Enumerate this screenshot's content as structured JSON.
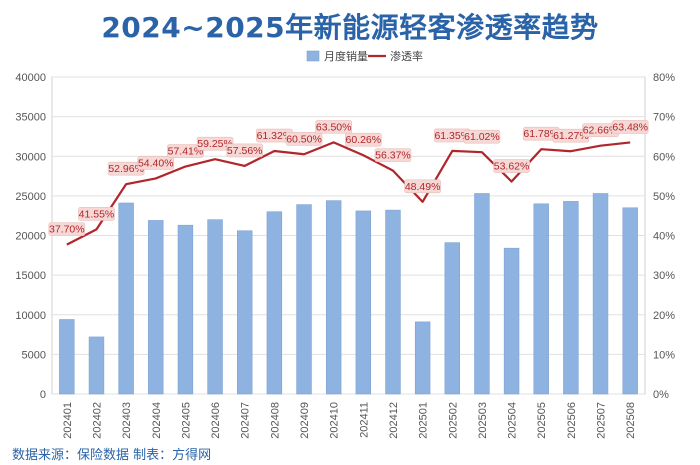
{
  "title": "2024~2025年新能源轻客渗透率趋势",
  "source": "数据来源：保险数据 制表：方得网",
  "chart_data": {
    "type": "bar",
    "title": "2024~2025年新能源轻客渗透率趋势",
    "categories": [
      "202401",
      "202402",
      "202403",
      "202404",
      "202405",
      "202406",
      "202407",
      "202408",
      "202409",
      "202410",
      "202411",
      "202412",
      "202501",
      "202502",
      "202503",
      "202504",
      "202505",
      "202506",
      "202507",
      "202508"
    ],
    "series": [
      {
        "name": "月度销量",
        "type": "bar",
        "axis": "left",
        "color": "#8fb3e0",
        "values": [
          9400,
          7200,
          24100,
          21900,
          21300,
          22000,
          20600,
          23000,
          23900,
          24400,
          23100,
          23200,
          9100,
          19100,
          25300,
          18400,
          24000,
          24300,
          25300,
          23500
        ]
      },
      {
        "name": "渗透率",
        "type": "line",
        "axis": "right",
        "color": "#b0262a",
        "values": [
          37.7,
          41.55,
          52.96,
          54.4,
          57.41,
          59.25,
          57.56,
          61.32,
          60.5,
          63.5,
          60.26,
          56.37,
          48.49,
          61.35,
          61.02,
          53.62,
          61.78,
          61.27,
          62.66,
          63.48
        ],
        "labels": [
          "37.70%",
          "41.55%",
          "52.96%",
          "54.40%",
          "57.41%",
          "59.25%",
          "57.56%",
          "61.32%",
          "60.50%",
          "63.50%",
          "60.26%",
          "56.37%",
          "48.49%",
          "61.35%",
          "61.02%",
          "53.62%",
          "61.78%",
          "61.27%",
          "62.66%",
          "63.48%"
        ]
      }
    ],
    "y_left": {
      "min": 0,
      "max": 40000,
      "step": 5000,
      "ticks": [
        "0",
        "5000",
        "10000",
        "15000",
        "20000",
        "25000",
        "30000",
        "35000",
        "40000"
      ]
    },
    "y_right": {
      "min": 0,
      "max": 80,
      "step": 10,
      "ticks": [
        "0%",
        "10%",
        "20%",
        "30%",
        "40%",
        "50%",
        "60%",
        "70%",
        "80%"
      ]
    },
    "legend_position": "top-center",
    "grid": true
  }
}
